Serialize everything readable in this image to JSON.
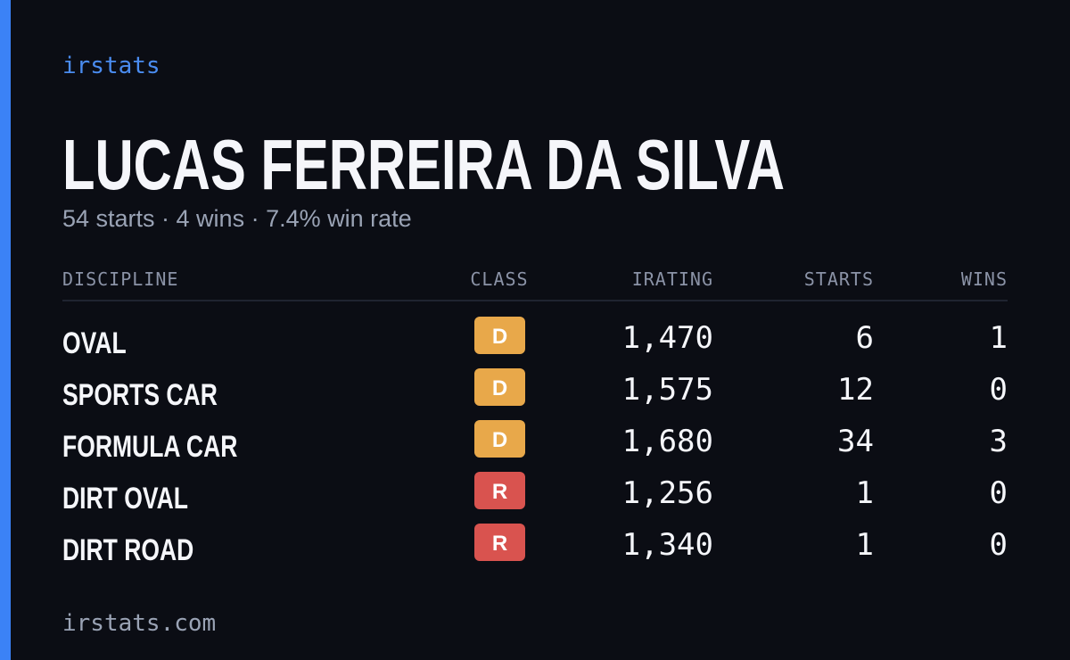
{
  "brand": "irstats",
  "driver": {
    "name": "LUCAS FERREIRA DA SILVA",
    "summary": "54 starts · 4 wins · 7.4% win rate"
  },
  "table": {
    "headers": [
      "DISCIPLINE",
      "CLASS",
      "IRATING",
      "STARTS",
      "WINS"
    ],
    "rows": [
      {
        "discipline": "OVAL",
        "class": "D",
        "class_color": "#e8a84a",
        "irating": "1,470",
        "starts": "6",
        "wins": "1"
      },
      {
        "discipline": "SPORTS CAR",
        "class": "D",
        "class_color": "#e8a84a",
        "irating": "1,575",
        "starts": "12",
        "wins": "0"
      },
      {
        "discipline": "FORMULA CAR",
        "class": "D",
        "class_color": "#e8a84a",
        "irating": "1,680",
        "starts": "34",
        "wins": "3"
      },
      {
        "discipline": "DIRT OVAL",
        "class": "R",
        "class_color": "#d9534f",
        "irating": "1,256",
        "starts": "1",
        "wins": "0"
      },
      {
        "discipline": "DIRT ROAD",
        "class": "R",
        "class_color": "#d9534f",
        "irating": "1,340",
        "starts": "1",
        "wins": "0"
      }
    ]
  },
  "footer": "irstats.com"
}
